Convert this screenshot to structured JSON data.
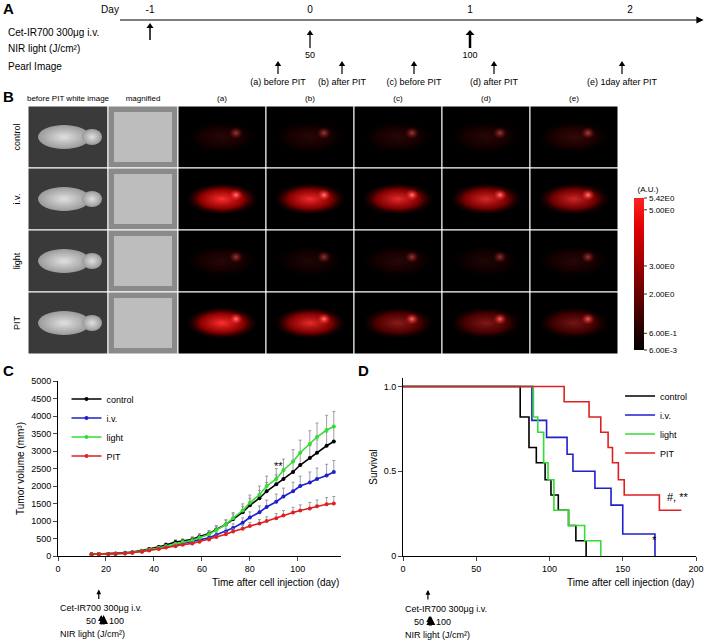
{
  "panel_labels": [
    "A",
    "B",
    "C",
    "D"
  ],
  "timeline": {
    "day_label": "Day",
    "days": [
      -1,
      0,
      1,
      2
    ],
    "antibody": {
      "label": "Cet-IR700 300μg i.v.",
      "day": -1
    },
    "light": {
      "label": "NIR light (J/cm²)",
      "doses": [
        {
          "day": 0,
          "value": 50
        },
        {
          "day": 1,
          "value": 100
        }
      ]
    },
    "imaging": {
      "label": "Pearl Image",
      "times": [
        {
          "day": -0.2,
          "label": "(a) before PIT"
        },
        {
          "day": 0.2,
          "label": "(b) after PIT"
        },
        {
          "day": 0.65,
          "label": "(c) before PIT"
        },
        {
          "day": 1.15,
          "label": "(d) after PIT"
        },
        {
          "day": 1.95,
          "label": "(e) 1day after PIT"
        }
      ]
    }
  },
  "images": {
    "row_labels": [
      "control",
      "i.v.",
      "light",
      "PIT"
    ],
    "column_labels": [
      "before PIT white image",
      "magnified",
      "(a)",
      "(b)",
      "(c)",
      "(d)",
      "(e)"
    ],
    "colorbar": {
      "title": "(A.U.)",
      "range": [
        0.006,
        5.42
      ],
      "ticks": [
        {
          "value": 5.42,
          "label": "5.42E0"
        },
        {
          "value": 5,
          "label": "5.00E0"
        },
        {
          "value": 3,
          "label": "3.00E0"
        },
        {
          "value": 2,
          "label": "2.00E0"
        },
        {
          "value": 0.6,
          "label": "6.00E-1"
        },
        {
          "value": 0.006,
          "label": "6.00E-3"
        }
      ]
    }
  },
  "chart_data": [
    {
      "type": "line",
      "x_label": "Time after cell injection (day)",
      "y_label": "Tumor volume (mm³)",
      "xlim": [
        0,
        118
      ],
      "xticks": [
        0,
        20,
        40,
        60,
        80,
        100
      ],
      "ylim": [
        0,
        5000
      ],
      "yticks": [
        0,
        500,
        1000,
        1500,
        2000,
        2500,
        3000,
        3500,
        4000,
        4500,
        5000
      ],
      "grid": false,
      "legend": "top left",
      "marker": "circle",
      "x": [
        14,
        17,
        21,
        24,
        28,
        31,
        35,
        38,
        42,
        45,
        49,
        52,
        56,
        59,
        63,
        66,
        70,
        73,
        77,
        80,
        84,
        87,
        91,
        94,
        98,
        101,
        105,
        108,
        112,
        115
      ],
      "series": [
        {
          "name": "control",
          "color": "#000000",
          "values": [
            50,
            55,
            60,
            70,
            90,
            110,
            150,
            200,
            260,
            320,
            400,
            430,
            480,
            560,
            640,
            760,
            900,
            1050,
            1250,
            1450,
            1650,
            1850,
            2050,
            2200,
            2400,
            2600,
            2800,
            2950,
            3150,
            3270
          ],
          "errors": [
            5,
            6,
            7,
            8,
            10,
            12,
            20,
            30,
            40,
            50,
            60,
            60,
            70,
            80,
            90,
            110,
            130,
            150,
            170,
            200,
            220,
            250,
            270,
            290,
            310,
            330,
            350,
            370,
            390,
            400
          ]
        },
        {
          "name": "i.v.",
          "color": "#1f1fcc",
          "values": [
            50,
            55,
            60,
            65,
            80,
            100,
            130,
            170,
            220,
            260,
            310,
            350,
            400,
            460,
            520,
            600,
            700,
            800,
            950,
            1100,
            1250,
            1400,
            1550,
            1700,
            1850,
            2000,
            2100,
            2200,
            2300,
            2400
          ],
          "errors": [
            5,
            5,
            6,
            7,
            9,
            11,
            15,
            20,
            30,
            35,
            40,
            45,
            50,
            60,
            70,
            80,
            100,
            120,
            140,
            160,
            180,
            200,
            220,
            240,
            260,
            280,
            300,
            310,
            320,
            330
          ]
        },
        {
          "name": "light",
          "color": "#33dd33",
          "values": [
            50,
            55,
            60,
            65,
            80,
            100,
            140,
            180,
            230,
            280,
            340,
            400,
            450,
            520,
            620,
            740,
            900,
            1080,
            1300,
            1520,
            1750,
            2000,
            2200,
            2450,
            2700,
            2950,
            3200,
            3400,
            3600,
            3700
          ],
          "errors": [
            5,
            6,
            7,
            8,
            10,
            12,
            20,
            25,
            35,
            40,
            50,
            60,
            70,
            80,
            90,
            110,
            130,
            160,
            190,
            220,
            250,
            280,
            300,
            320,
            340,
            360,
            380,
            400,
            420,
            430
          ]
        },
        {
          "name": "PIT",
          "color": "#e02020",
          "values": [
            50,
            52,
            55,
            60,
            75,
            95,
            125,
            160,
            200,
            240,
            280,
            320,
            360,
            410,
            470,
            540,
            620,
            700,
            780,
            860,
            930,
            1000,
            1080,
            1160,
            1240,
            1300,
            1360,
            1420,
            1480,
            1500
          ],
          "errors": [
            5,
            5,
            6,
            6,
            8,
            10,
            12,
            15,
            20,
            25,
            30,
            35,
            40,
            45,
            50,
            60,
            70,
            80,
            90,
            100,
            110,
            120,
            130,
            140,
            150,
            160,
            170,
            180,
            190,
            200
          ]
        }
      ],
      "annotations": [
        {
          "text": "**",
          "x": 92,
          "y": 2350
        }
      ],
      "treatments": [
        {
          "label": "Cet-IR700 300μg i.v.",
          "days": [
            17
          ]
        },
        {
          "label": "NIR light (J/cm²)",
          "days": [
            18,
            19
          ],
          "doses": [
            50,
            100
          ]
        }
      ]
    },
    {
      "type": "line",
      "line_style": "step",
      "x_label": "Time after cell injection (day)",
      "y_label": "Survival",
      "xlim": [
        0,
        200
      ],
      "xticks": [
        0,
        50,
        100,
        150,
        200
      ],
      "ylim": [
        0,
        1.05
      ],
      "yticks": [
        0,
        0.5,
        {
          "value": 1,
          "label": "1.0"
        }
      ],
      "grid": false,
      "legend": "top right",
      "series": [
        {
          "name": "control",
          "color": "#000000",
          "x": [
            0,
            80,
            86,
            91,
            97,
            101,
            106,
            113,
            118,
            125
          ],
          "values": [
            1,
            0.82,
            0.64,
            0.55,
            0.45,
            0.36,
            0.27,
            0.18,
            0.09,
            0
          ]
        },
        {
          "name": "i.v.",
          "color": "#1f1fcc",
          "x": [
            0,
            88,
            98,
            112,
            116,
            131,
            142,
            150,
            172
          ],
          "values": [
            1,
            0.8,
            0.7,
            0.6,
            0.5,
            0.4,
            0.3,
            0.13,
            0
          ]
        },
        {
          "name": "light",
          "color": "#33dd33",
          "x": [
            0,
            89,
            92,
            96,
            99,
            103,
            113,
            124,
            135
          ],
          "values": [
            1,
            0.82,
            0.73,
            0.55,
            0.45,
            0.27,
            0.18,
            0.09,
            0
          ]
        },
        {
          "name": "PIT",
          "color": "#e02020",
          "x": [
            0,
            110,
            127,
            135,
            140,
            143,
            147,
            151,
            175,
            190
          ],
          "values": [
            1,
            0.91,
            0.82,
            0.73,
            0.64,
            0.55,
            0.45,
            0.36,
            0.27,
            0.27
          ]
        }
      ],
      "annotations": [
        {
          "text": "*",
          "x": 172,
          "y": 0.05
        },
        {
          "text": "#, **",
          "x": 188,
          "y": 0.3
        }
      ],
      "treatments": [
        {
          "label": "Cet-IR700 300μg i.v.",
          "days": [
            17
          ]
        },
        {
          "label": "NIR light (J/cm²)",
          "days": [
            18,
            19
          ],
          "doses": [
            50,
            100
          ]
        }
      ]
    }
  ]
}
